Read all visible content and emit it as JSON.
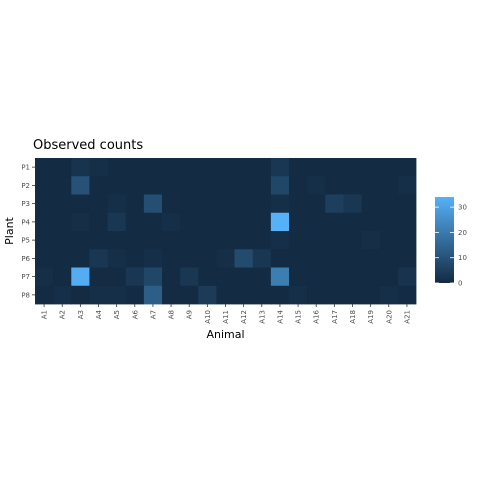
{
  "chart_data": {
    "type": "heatmap",
    "title": "Observed counts",
    "xlabel": "Animal",
    "ylabel": "Plant",
    "x_categories": [
      "A1",
      "A2",
      "A3",
      "A4",
      "A5",
      "A6",
      "A7",
      "A8",
      "A9",
      "A10",
      "A11",
      "A12",
      "A13",
      "A14",
      "A15",
      "A16",
      "A17",
      "A18",
      "A19",
      "A20",
      "A21"
    ],
    "y_categories": [
      "P1",
      "P2",
      "P3",
      "P4",
      "P5",
      "P6",
      "P7",
      "P8"
    ],
    "values": [
      [
        0,
        0,
        2,
        1,
        0,
        0,
        0,
        0,
        0,
        0,
        0,
        0,
        0,
        3,
        0,
        0,
        0,
        0,
        0,
        0,
        0
      ],
      [
        0,
        0,
        10,
        0,
        0,
        0,
        0,
        0,
        0,
        0,
        0,
        0,
        0,
        7,
        0,
        1,
        0,
        0,
        0,
        0,
        1
      ],
      [
        0,
        0,
        0,
        0,
        1,
        0,
        9,
        0,
        0,
        0,
        0,
        0,
        0,
        1,
        0,
        0,
        5,
        3,
        0,
        0,
        0
      ],
      [
        0,
        0,
        1,
        0,
        3,
        0,
        0,
        1,
        0,
        0,
        0,
        0,
        0,
        34,
        0,
        0,
        0,
        0,
        0,
        0,
        0
      ],
      [
        0,
        0,
        0,
        0,
        0,
        0,
        0,
        0,
        0,
        0,
        0,
        0,
        0,
        1,
        0,
        0,
        0,
        0,
        1,
        0,
        0
      ],
      [
        0,
        0,
        0,
        3,
        1,
        0,
        1,
        0,
        0,
        0,
        1,
        8,
        3,
        0,
        0,
        0,
        0,
        0,
        0,
        0,
        0
      ],
      [
        1,
        0,
        33,
        0,
        0,
        3,
        7,
        0,
        3,
        0,
        0,
        0,
        0,
        21,
        0,
        0,
        0,
        0,
        0,
        0,
        2
      ],
      [
        0,
        1,
        0,
        1,
        1,
        0,
        13,
        0,
        0,
        4,
        0,
        0,
        0,
        0,
        1,
        0,
        0,
        0,
        0,
        1,
        0
      ]
    ],
    "colorbar": {
      "low_color": "#132B43",
      "high_color": "#56B1F7",
      "min": 0,
      "max": 34,
      "ticks": [
        0,
        10,
        20,
        30
      ],
      "position": "right"
    },
    "grid": false
  }
}
